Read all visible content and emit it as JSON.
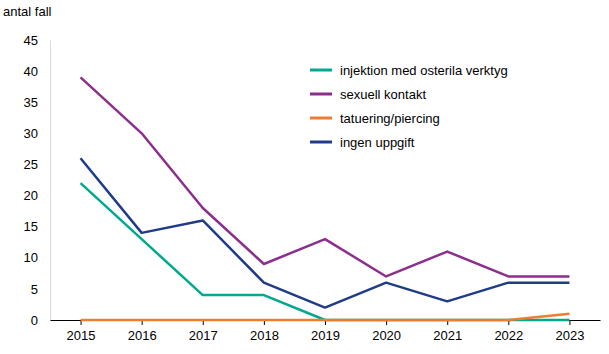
{
  "chart_data": {
    "type": "line",
    "y_label": "antal fall",
    "categories": [
      "2015",
      "2016",
      "2017",
      "2018",
      "2019",
      "2020",
      "2021",
      "2022",
      "2023"
    ],
    "series": [
      {
        "name": "injektion med osterila verktyg",
        "color": "#00a88e",
        "values": [
          22,
          13,
          4,
          4,
          0,
          0,
          0,
          0,
          0
        ]
      },
      {
        "name": "sexuell kontakt",
        "color": "#8c2e8c",
        "values": [
          39,
          30,
          18,
          9,
          13,
          7,
          11,
          7,
          7
        ]
      },
      {
        "name": "tatuering/piercing",
        "color": "#ed7d31",
        "values": [
          0,
          0,
          0,
          0,
          0,
          0,
          0,
          0,
          1
        ]
      },
      {
        "name": "ingen uppgift",
        "color": "#1f3c88",
        "values": [
          26,
          14,
          16,
          6,
          2,
          6,
          3,
          6,
          6
        ]
      }
    ],
    "ylim": [
      0,
      45
    ],
    "yticks": [
      0,
      5,
      10,
      15,
      20,
      25,
      30,
      35,
      40,
      45
    ],
    "grid": false,
    "legend": "upper right"
  }
}
